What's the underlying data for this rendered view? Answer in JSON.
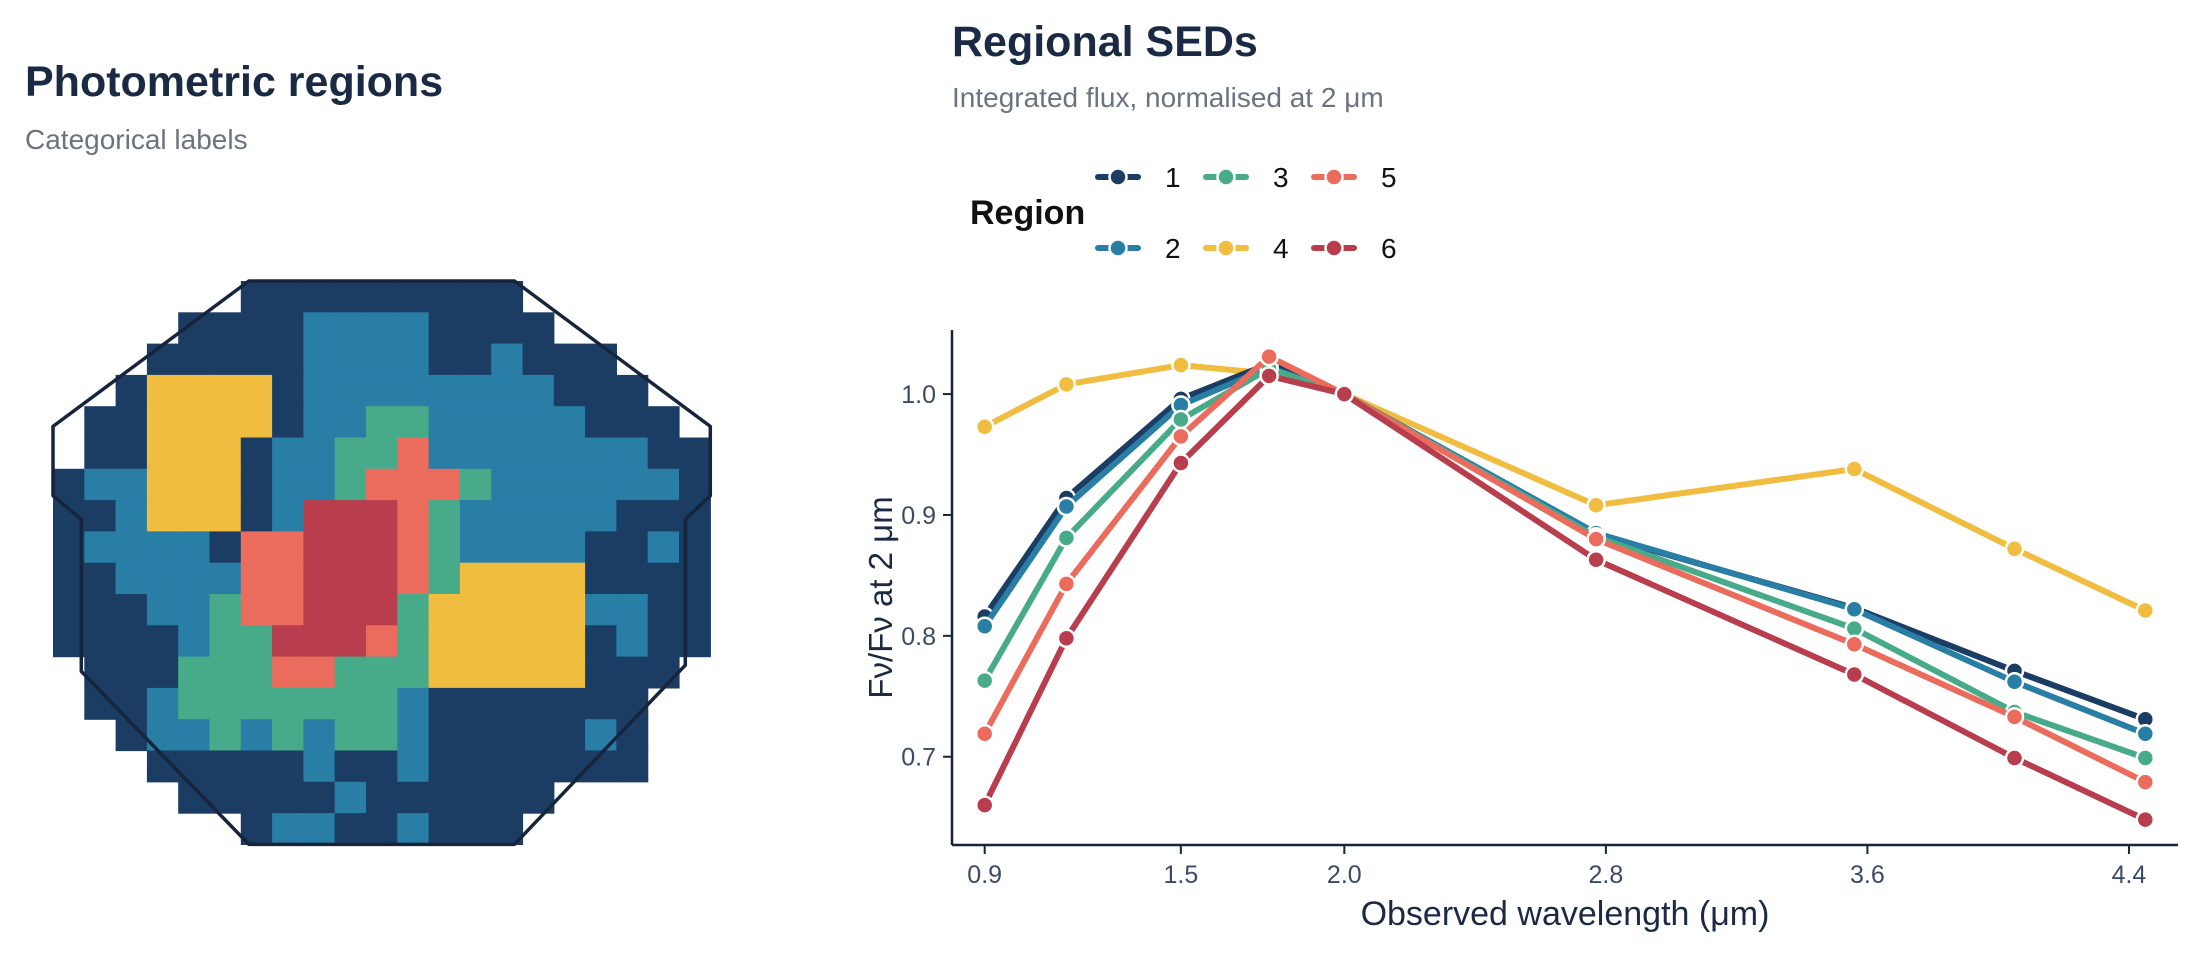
{
  "left": {
    "title": "Photometric regions",
    "subtitle": "Categorical labels"
  },
  "right": {
    "title": "Regional SEDs",
    "subtitle": "Integrated flux, normalised at 2 μm",
    "legend_title": "Region"
  },
  "colors": {
    "1": "#1b3d63",
    "2": "#297ea6",
    "3": "#47ab8a",
    "4": "#f0bd40",
    "5": "#eb6b5c",
    "6": "#b83d4d",
    "outline": "#16253d"
  },
  "chart_data": [
    {
      "type": "heatmap",
      "title": "Photometric regions",
      "subtitle": "Categorical labels",
      "grid": [
        "000000111111111000000",
        "000011112222111100000",
        "000111112222112111000",
        "001444412222222211100",
        "011444412233222221110",
        "011444122335222222211",
        "122444122355532222221",
        "112444126665322222111",
        "122221556665322221121",
        "112222556665344441111",
        "111223556663444442211",
        "111123366653444441211",
        "011133355333444441110",
        "011233333332111111100",
        "001223232332111112100",
        "000111112112111111100",
        "000011111211111100000",
        "000000122112111000000"
      ]
    },
    {
      "type": "line",
      "title": "Regional SEDs",
      "subtitle": "Integrated flux, normalised at 2 μm",
      "xlabel": "Observed wavelength (μm)",
      "ylabel": "Fν/Fν at 2 μm",
      "x": [
        0.9,
        1.15,
        1.5,
        1.77,
        2.0,
        2.77,
        3.56,
        4.05,
        4.45
      ],
      "xlim": [
        0.8,
        4.55
      ],
      "ylim": [
        0.627,
        1.053
      ],
      "xticks": [
        0.9,
        1.5,
        2.0,
        2.8,
        3.6,
        4.4
      ],
      "xtick_labels": [
        "0.9",
        "1.5",
        "2.0",
        "2.8",
        "3.6",
        "4.4"
      ],
      "yticks": [
        0.7,
        0.8,
        0.9,
        1.0
      ],
      "ytick_labels": [
        "0.7",
        "0.8",
        "0.9",
        "1.0"
      ],
      "legend_title": "Region",
      "legend_position": "top",
      "series": [
        {
          "name": "1",
          "values": [
            0.816,
            0.914,
            0.996,
            1.025,
            1.0,
            0.884,
            0.823,
            0.771,
            0.731
          ]
        },
        {
          "name": "2",
          "values": [
            0.808,
            0.907,
            0.991,
            1.022,
            1.0,
            0.885,
            0.822,
            0.762,
            0.719
          ]
        },
        {
          "name": "3",
          "values": [
            0.763,
            0.881,
            0.979,
            1.021,
            1.0,
            0.882,
            0.806,
            0.737,
            0.699
          ]
        },
        {
          "name": "4",
          "values": [
            0.973,
            1.008,
            1.024,
            1.017,
            1.0,
            0.908,
            0.938,
            0.872,
            0.821
          ]
        },
        {
          "name": "5",
          "values": [
            0.719,
            0.843,
            0.965,
            1.031,
            1.0,
            0.88,
            0.793,
            0.733,
            0.679
          ]
        },
        {
          "name": "6",
          "values": [
            0.66,
            0.798,
            0.943,
            1.015,
            1.0,
            0.863,
            0.768,
            0.699,
            0.648
          ]
        }
      ]
    }
  ]
}
